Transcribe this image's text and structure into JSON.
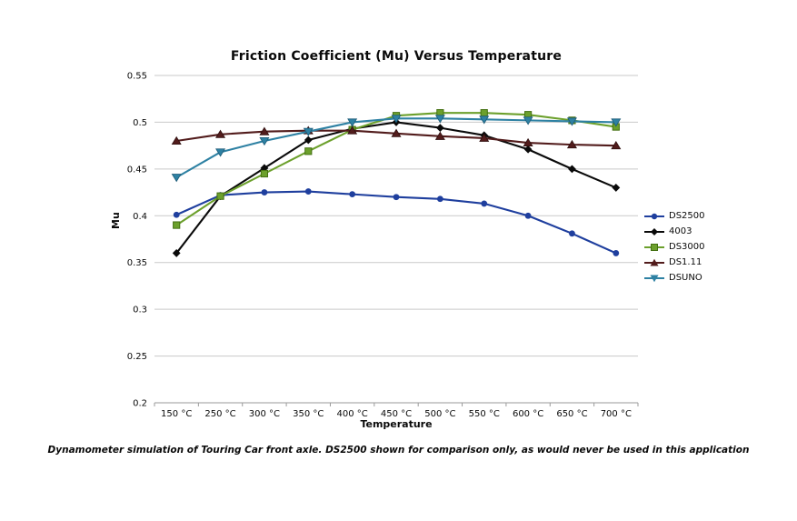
{
  "chart": {
    "title": "Friction Coefficient (Mu) Versus Temperature",
    "caption": "Dynamometer simulation of Touring Car front axle. DS2500 shown for comparison only, as would never be used in this application"
  },
  "chart_data": {
    "type": "line",
    "title": "Friction Coefficient (Mu) Versus Temperature",
    "xlabel": "Temperature",
    "ylabel": "Mu",
    "categories": [
      "150 °C",
      "250 °C",
      "300 °C",
      "350 °C",
      "400 °C",
      "450 °C",
      "500 °C",
      "550 °C",
      "600 °C",
      "650 °C",
      "700 °C"
    ],
    "ylim": [
      0.2,
      0.55
    ],
    "yticks": [
      "0.2",
      "0.25",
      "0.3",
      "0.35",
      "0.4",
      "0.45",
      "0.5",
      "0.55"
    ],
    "grid": true,
    "legend_position": "right",
    "series": [
      {
        "name": "DS2500",
        "color": "#1f3f9e",
        "marker": "circle",
        "values": [
          0.401,
          0.422,
          0.425,
          0.426,
          0.423,
          0.42,
          0.418,
          0.413,
          0.4,
          0.381,
          0.36
        ]
      },
      {
        "name": "4003",
        "color": "#0a0a0a",
        "marker": "diamond",
        "values": [
          0.36,
          0.421,
          0.451,
          0.481,
          0.493,
          0.5,
          0.494,
          0.486,
          0.471,
          0.45,
          0.43
        ]
      },
      {
        "name": "DS3000",
        "color": "#6ca02c",
        "marker": "square",
        "marker_stroke": "#447012",
        "values": [
          0.39,
          0.421,
          0.445,
          0.469,
          0.492,
          0.507,
          0.51,
          0.51,
          0.508,
          0.502,
          0.495
        ]
      },
      {
        "name": "DS1.11",
        "color": "#521c1c",
        "marker": "triangle-up",
        "marker_stroke": "#2e0f0f",
        "values": [
          0.48,
          0.487,
          0.49,
          0.491,
          0.491,
          0.488,
          0.485,
          0.483,
          0.478,
          0.476,
          0.475
        ]
      },
      {
        "name": "DSUNO",
        "color": "#2e81a3",
        "marker": "triangle-down",
        "marker_stroke": "#1d5a77",
        "values": [
          0.441,
          0.468,
          0.48,
          0.49,
          0.5,
          0.504,
          0.504,
          0.503,
          0.502,
          0.501,
          0.5
        ]
      }
    ],
    "grid_color": "#c9c9c9",
    "axis_color": "#9a9a9a",
    "text_color": "#0a0a0a"
  }
}
